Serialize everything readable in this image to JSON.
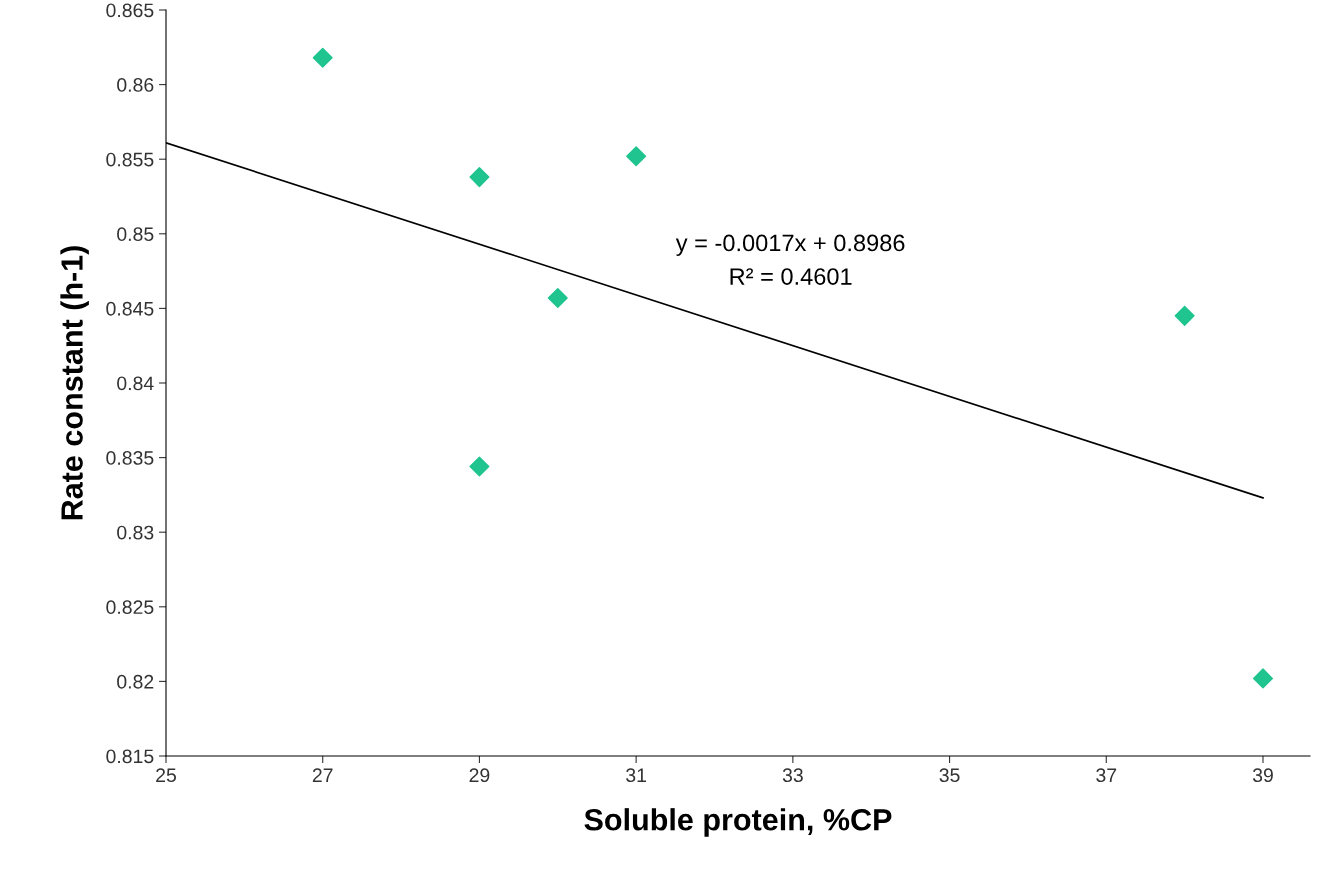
{
  "chart_data": {
    "type": "scatter",
    "xlabel": "Soluble protein, %CP",
    "ylabel": "Rate constant (h-1)",
    "series": [
      {
        "type": "scatter",
        "color": "#1fc48f",
        "marker": "diamond",
        "x": [
          27,
          29,
          29,
          30,
          31,
          38,
          39
        ],
        "values": [
          0.8618,
          0.8538,
          0.8344,
          0.8457,
          0.8552,
          0.8445,
          0.8202
        ]
      },
      {
        "type": "line",
        "color": "#000000",
        "marker": "none",
        "line_style": "solid",
        "x": [
          25,
          39
        ],
        "values": [
          0.8561,
          0.8323
        ]
      }
    ],
    "xlim": [
      25,
      39.6
    ],
    "xticks": [
      25,
      27,
      29,
      31,
      33,
      35,
      37,
      39
    ],
    "ylim": [
      0.815,
      0.865
    ],
    "yticks": [
      0.815,
      0.82,
      0.825,
      0.83,
      0.835,
      0.84,
      0.845,
      0.85,
      0.855,
      0.86,
      0.865
    ],
    "grid": false,
    "legend": false,
    "annotations": [
      "y = -0.0017x + 0.8986",
      "R² = 0.4601"
    ]
  }
}
